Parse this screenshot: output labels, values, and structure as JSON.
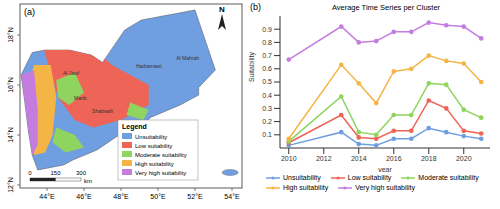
{
  "chart_data": {
    "type": "line",
    "panel_label": "(b)",
    "title": "Average Time Series per Cluster",
    "x_label": "year",
    "y_label": "Suitability",
    "x": [
      2010,
      2013,
      2014,
      2015,
      2016,
      2017,
      2018,
      2019,
      2020,
      2021
    ],
    "xlim": [
      2009.5,
      2021.5
    ],
    "xticks": [
      2010,
      2012,
      2014,
      2016,
      2018,
      2020
    ],
    "ylim": [
      0,
      1
    ],
    "yticks": [
      0.1,
      0.2,
      0.3,
      0.4,
      0.5,
      0.6,
      0.7,
      0.8,
      0.9
    ],
    "legend": "bottom",
    "marker": "circle",
    "series": [
      {
        "name": "Unsuitability",
        "color": "#6f9fe0",
        "values": [
          0.02,
          0.12,
          0.03,
          0.02,
          0.07,
          0.07,
          0.15,
          0.12,
          0.09,
          0.07
        ]
      },
      {
        "name": "Low suitability",
        "color": "#ee6457",
        "values": [
          0.04,
          0.25,
          0.08,
          0.07,
          0.13,
          0.13,
          0.36,
          0.3,
          0.13,
          0.11
        ]
      },
      {
        "name": "Moderate suitability",
        "color": "#8fd45e",
        "values": [
          0.05,
          0.39,
          0.12,
          0.1,
          0.25,
          0.25,
          0.49,
          0.48,
          0.29,
          0.23
        ]
      },
      {
        "name": "High suitability",
        "color": "#f4b446",
        "values": [
          0.07,
          0.63,
          0.49,
          0.34,
          0.58,
          0.6,
          0.7,
          0.66,
          0.64,
          0.5
        ]
      },
      {
        "name": "Very high suitability",
        "color": "#c47ddf",
        "values": [
          0.67,
          0.92,
          0.8,
          0.81,
          0.88,
          0.88,
          0.95,
          0.93,
          0.92,
          0.83
        ]
      }
    ]
  },
  "map": {
    "panel_label": "(a)",
    "north": "N",
    "legend_title": "Legend",
    "classes": [
      {
        "name": "Unsuitability",
        "color": "#6f9fe0"
      },
      {
        "name": "Low suitability",
        "color": "#ee6457"
      },
      {
        "name": "Moderate suitability",
        "color": "#8fd45e"
      },
      {
        "name": "High suitability",
        "color": "#f4b446"
      },
      {
        "name": "Very high suitability",
        "color": "#c47ddf"
      }
    ],
    "lon_ticks": [
      "44°E",
      "46°E",
      "48°E",
      "50°E",
      "52°E",
      "54°E"
    ],
    "lat_ticks": [
      "12°N",
      "14°N",
      "16°N",
      "18°N"
    ],
    "scale_values": [
      0,
      150,
      300
    ],
    "scale_unit": "km",
    "regions": [
      "Al Jawf",
      "Marib",
      "Shabwah",
      "Hadramawt",
      "Al Mahrah"
    ]
  }
}
